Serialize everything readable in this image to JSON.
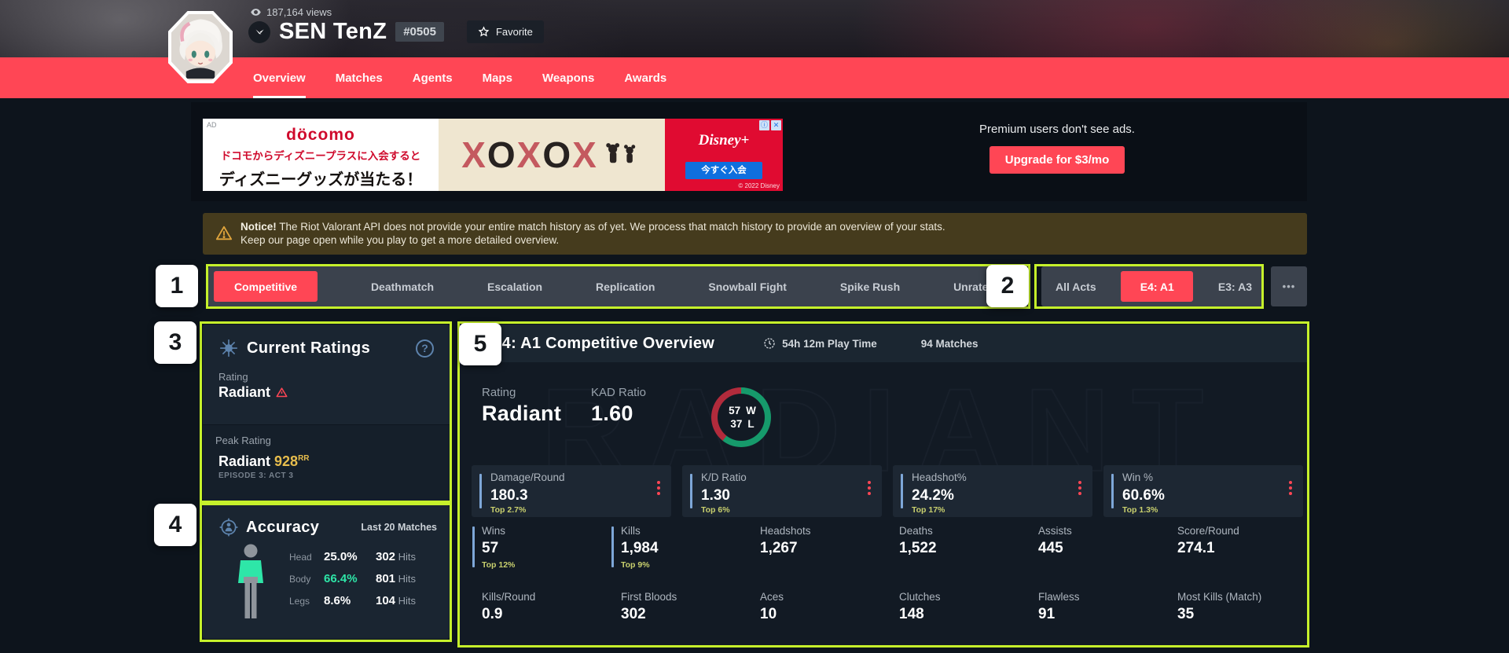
{
  "header": {
    "views": "187,164 views",
    "player_name": "SEN TenZ",
    "player_tag": "#0505",
    "favorite_label": "Favorite",
    "nav_tabs": [
      "Overview",
      "Matches",
      "Agents",
      "Maps",
      "Weapons",
      "Awards"
    ],
    "active_tab": "Overview"
  },
  "ad": {
    "ad_label": "AD",
    "brand": "döcomo",
    "line1": "ドコモからディズニープラスに入会すると",
    "line2": "ディズニーグッズが当たる！",
    "pattern": [
      "X",
      "O",
      "X",
      "O",
      "X"
    ],
    "disney_logo": "Disney+",
    "cta": "今すぐ入会",
    "copyright": "© 2022 Disney",
    "adchoices_icon": "ⓘ",
    "close_icon": "✕"
  },
  "premium": {
    "message": "Premium users don't see ads.",
    "button": "Upgrade for $3/mo"
  },
  "notice": {
    "title": "Notice!",
    "line1": "The Riot Valorant API does not provide your entire match history as of yet. We process that match history to provide an overview of your stats.",
    "line2": "Keep our page open while you play to get a more detailed overview."
  },
  "filters": {
    "modes": [
      "Competitive",
      "Deathmatch",
      "Escalation",
      "Replication",
      "Snowball Fight",
      "Spike Rush",
      "Unrated"
    ],
    "active_mode": "Competitive",
    "acts": [
      "All Acts",
      "E4: A1",
      "E3: A3"
    ],
    "active_act": "E4: A1",
    "more": "•••"
  },
  "annotations": [
    "1",
    "2",
    "3",
    "4",
    "5"
  ],
  "current_ratings": {
    "title": "Current Ratings",
    "help_icon": "?",
    "rating_label": "Rating",
    "rating_value": "Radiant",
    "peak_label": "Peak Rating",
    "peak_value": "Radiant",
    "peak_rr": "928",
    "peak_rr_suffix": "RR",
    "peak_season": "EPISODE 3: ACT 3"
  },
  "accuracy": {
    "title": "Accuracy",
    "subtitle": "Last 20 Matches",
    "rows": [
      {
        "label": "Head",
        "pct": "25.0%",
        "hits": "302",
        "hits_suffix": "Hits"
      },
      {
        "label": "Body",
        "pct": "66.4%",
        "hits": "801",
        "hits_suffix": "Hits"
      },
      {
        "label": "Legs",
        "pct": "8.6%",
        "hits": "104",
        "hits_suffix": "Hits"
      }
    ]
  },
  "overview": {
    "title": "E4: A1 Competitive Overview",
    "playtime": "54h 12m Play Time",
    "matches": "94 Matches",
    "rating_label": "Rating",
    "rating_value": "Radiant",
    "kad_label": "KAD Ratio",
    "kad_value": "1.60",
    "wins": "57",
    "wins_letter": "W",
    "losses": "37",
    "losses_letter": "L",
    "win_pct": 60.6,
    "watermark": "RADIANT",
    "featured": [
      {
        "label": "Damage/Round",
        "value": "180.3",
        "top": "Top 2.7%"
      },
      {
        "label": "K/D Ratio",
        "value": "1.30",
        "top": "Top 6%"
      },
      {
        "label": "Headshot%",
        "value": "24.2%",
        "top": "Top 17%"
      },
      {
        "label": "Win %",
        "value": "60.6%",
        "top": "Top 1.3%"
      }
    ],
    "grid": [
      {
        "label": "Wins",
        "value": "57",
        "top": "Top 12%",
        "bar": true
      },
      {
        "label": "Kills",
        "value": "1,984",
        "top": "Top 9%",
        "bar": true
      },
      {
        "label": "Headshots",
        "value": "1,267"
      },
      {
        "label": "Deaths",
        "value": "1,522"
      },
      {
        "label": "Assists",
        "value": "445"
      },
      {
        "label": "Score/Round",
        "value": "274.1"
      },
      {
        "label": "Kills/Round",
        "value": "0.9"
      },
      {
        "label": "First Bloods",
        "value": "302"
      },
      {
        "label": "Aces",
        "value": "10"
      },
      {
        "label": "Clutches",
        "value": "148"
      },
      {
        "label": "Flawless",
        "value": "91"
      },
      {
        "label": "Most Kills (Match)",
        "value": "35"
      }
    ]
  },
  "colors": {
    "accent": "#ff4655",
    "annotation": "#c6f12b",
    "teal": "#2ee6a8",
    "gold": "#e7bd4d",
    "top_percent": "#c9d06e",
    "stat_bar": "#7ea7d8",
    "donut_win": "#169a6b",
    "donut_loss": "#b22b3c"
  }
}
